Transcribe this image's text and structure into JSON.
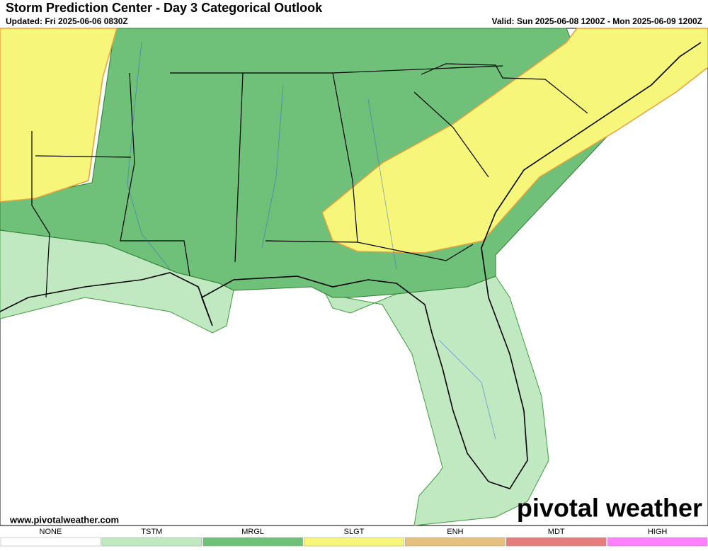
{
  "header": {
    "title": "Storm Prediction Center - Day 3 Categorical Outlook",
    "updated": "Updated: Fri 2025-06-06 0830Z",
    "valid": "Valid: Sun 2025-06-08 1200Z - Mon 2025-06-09 1200Z"
  },
  "footer": {
    "website": "www.pivotalweather.com",
    "logo": "pivotal weather"
  },
  "legend": {
    "items": [
      {
        "label": "NONE",
        "color": "#ffffff"
      },
      {
        "label": "TSTM",
        "color": "#c1e9c1"
      },
      {
        "label": "MRGL",
        "color": "#6fc079"
      },
      {
        "label": "SLGT",
        "color": "#f6f67b"
      },
      {
        "label": "ENH",
        "color": "#e6c07f"
      },
      {
        "label": "MDT",
        "color": "#e57d7d"
      },
      {
        "label": "HIGH",
        "color": "#ff80ff"
      }
    ]
  }
}
